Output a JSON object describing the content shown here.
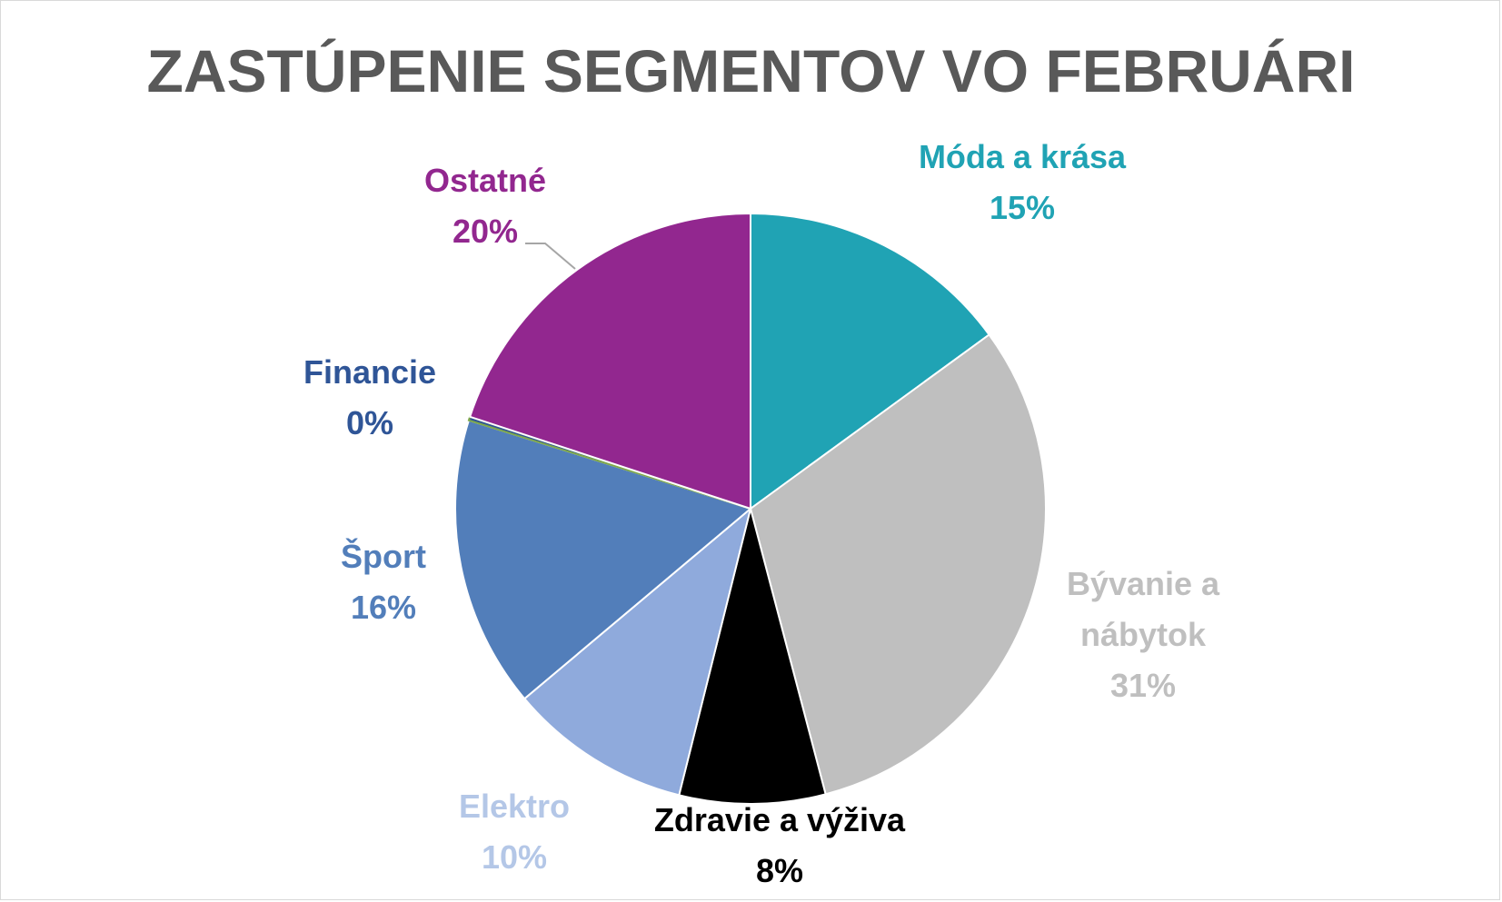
{
  "chart_data": {
    "type": "pie",
    "title": "ZASTÚPENIE SEGMENTOV VO FEBRUÁRI",
    "slices": [
      {
        "label": "Móda a krása",
        "value": 15,
        "display": "15%",
        "color": "#20a3b4",
        "label_lines": [
          "Móda a krása"
        ]
      },
      {
        "label": "Bývanie a nábytok",
        "value": 31,
        "display": "31%",
        "color": "#bfbfbf",
        "label_lines": [
          "Bývanie a",
          "nábytok"
        ]
      },
      {
        "label": "Zdravie a výživa",
        "value": 8,
        "display": "8%",
        "color": "#000000",
        "label_lines": [
          "Zdravie a výživa"
        ]
      },
      {
        "label": "Elektro",
        "value": 10,
        "display": "10%",
        "color": "#8faadc",
        "label_lines": [
          "Elektro"
        ]
      },
      {
        "label": "Šport",
        "value": 16,
        "display": "16%",
        "color": "#527eba",
        "label_lines": [
          "Šport"
        ]
      },
      {
        "label": "Financie",
        "value": 0.2,
        "display": "0%",
        "color": "#2f5597",
        "label_lines": [
          "Financie"
        ]
      },
      {
        "label": "Ostatné",
        "value": 20,
        "display": "20%",
        "color": "#92278f",
        "label_lines": [
          "Ostatné"
        ]
      }
    ],
    "legend": "none",
    "label_position": "outside"
  }
}
